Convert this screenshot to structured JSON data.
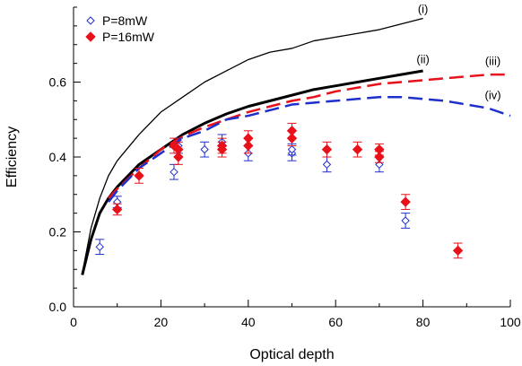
{
  "chart_data": {
    "type": "scatter",
    "title": "",
    "xlabel": "Optical depth",
    "ylabel": "Efficiency",
    "xlim": [
      0,
      100
    ],
    "ylim": [
      0,
      0.8
    ],
    "x_ticks": [
      0,
      20,
      40,
      60,
      80,
      100
    ],
    "y_ticks": [
      0.0,
      0.2,
      0.4,
      0.6
    ],
    "y_tick_labels": [
      "0.0",
      "0.2",
      "0.4",
      "0.6"
    ],
    "grid": false,
    "legend": {
      "position": "top-left",
      "entries": [
        {
          "label": "P=8mW",
          "marker": "open-diamond",
          "color": "#1f2fcc"
        },
        {
          "label": "P=16mW",
          "marker": "filled-diamond",
          "color": "#e8111a"
        }
      ]
    },
    "series": [
      {
        "name": "P=8mW",
        "kind": "points",
        "marker": "open-diamond",
        "color": "#1f2fcc",
        "points": [
          {
            "x": 6,
            "y": 0.16,
            "err": 0.02
          },
          {
            "x": 10,
            "y": 0.28,
            "err": 0.015
          },
          {
            "x": 23,
            "y": 0.36,
            "err": 0.02
          },
          {
            "x": 24,
            "y": 0.43,
            "err": 0.02
          },
          {
            "x": 30,
            "y": 0.42,
            "err": 0.02
          },
          {
            "x": 34,
            "y": 0.44,
            "err": 0.02
          },
          {
            "x": 40,
            "y": 0.41,
            "err": 0.02
          },
          {
            "x": 50,
            "y": 0.41,
            "err": 0.02
          },
          {
            "x": 50,
            "y": 0.42,
            "err": 0.015
          },
          {
            "x": 58,
            "y": 0.38,
            "err": 0.02
          },
          {
            "x": 70,
            "y": 0.38,
            "err": 0.02
          },
          {
            "x": 76,
            "y": 0.23,
            "err": 0.02
          }
        ]
      },
      {
        "name": "P=16mW",
        "kind": "points",
        "marker": "filled-diamond",
        "color": "#e8111a",
        "points": [
          {
            "x": 10,
            "y": 0.26,
            "err": 0.015
          },
          {
            "x": 15,
            "y": 0.35,
            "err": 0.02
          },
          {
            "x": 23,
            "y": 0.43,
            "err": 0.02
          },
          {
            "x": 24,
            "y": 0.42,
            "err": 0.02
          },
          {
            "x": 24,
            "y": 0.4,
            "err": 0.02
          },
          {
            "x": 34,
            "y": 0.43,
            "err": 0.02
          },
          {
            "x": 34,
            "y": 0.42,
            "err": 0.02
          },
          {
            "x": 40,
            "y": 0.45,
            "err": 0.02
          },
          {
            "x": 40,
            "y": 0.43,
            "err": 0.02
          },
          {
            "x": 50,
            "y": 0.47,
            "err": 0.02
          },
          {
            "x": 50,
            "y": 0.45,
            "err": 0.02
          },
          {
            "x": 58,
            "y": 0.42,
            "err": 0.02
          },
          {
            "x": 65,
            "y": 0.42,
            "err": 0.02
          },
          {
            "x": 70,
            "y": 0.42,
            "err": 0.015
          },
          {
            "x": 70,
            "y": 0.4,
            "err": 0.015
          },
          {
            "x": 76,
            "y": 0.28,
            "err": 0.02
          },
          {
            "x": 88,
            "y": 0.15,
            "err": 0.02
          }
        ]
      },
      {
        "name": "(i)",
        "kind": "line",
        "style": "solid-thin",
        "color": "#000000",
        "points": [
          [
            2,
            0.09
          ],
          [
            4,
            0.21
          ],
          [
            6,
            0.29
          ],
          [
            8,
            0.35
          ],
          [
            10,
            0.39
          ],
          [
            15,
            0.46
          ],
          [
            20,
            0.52
          ],
          [
            25,
            0.56
          ],
          [
            30,
            0.6
          ],
          [
            35,
            0.63
          ],
          [
            40,
            0.66
          ],
          [
            45,
            0.68
          ],
          [
            50,
            0.69
          ],
          [
            55,
            0.71
          ],
          [
            60,
            0.72
          ],
          [
            65,
            0.73
          ],
          [
            70,
            0.74
          ],
          [
            75,
            0.755
          ],
          [
            80,
            0.77
          ]
        ]
      },
      {
        "name": "(ii)",
        "kind": "line",
        "style": "solid-thick",
        "color": "#000000",
        "points": [
          [
            2,
            0.085
          ],
          [
            4,
            0.18
          ],
          [
            6,
            0.25
          ],
          [
            8,
            0.29
          ],
          [
            10,
            0.32
          ],
          [
            15,
            0.38
          ],
          [
            20,
            0.42
          ],
          [
            25,
            0.46
          ],
          [
            30,
            0.49
          ],
          [
            35,
            0.515
          ],
          [
            40,
            0.535
          ],
          [
            45,
            0.55
          ],
          [
            50,
            0.565
          ],
          [
            55,
            0.58
          ],
          [
            60,
            0.59
          ],
          [
            65,
            0.6
          ],
          [
            70,
            0.61
          ],
          [
            75,
            0.62
          ],
          [
            80,
            0.63
          ]
        ]
      },
      {
        "name": "(iii)",
        "kind": "line",
        "style": "dashed",
        "color": "#e8111a",
        "points": [
          [
            8,
            0.29
          ],
          [
            10,
            0.315
          ],
          [
            15,
            0.37
          ],
          [
            20,
            0.42
          ],
          [
            25,
            0.455
          ],
          [
            30,
            0.48
          ],
          [
            35,
            0.5
          ],
          [
            40,
            0.52
          ],
          [
            45,
            0.535
          ],
          [
            50,
            0.55
          ],
          [
            55,
            0.56
          ],
          [
            60,
            0.575
          ],
          [
            65,
            0.585
          ],
          [
            70,
            0.595
          ],
          [
            75,
            0.6
          ],
          [
            80,
            0.605
          ],
          [
            85,
            0.61
          ],
          [
            90,
            0.615
          ],
          [
            95,
            0.62
          ],
          [
            100,
            0.62
          ]
        ]
      },
      {
        "name": "(iv)",
        "kind": "line",
        "style": "dashed",
        "color": "#1f2fcc",
        "points": [
          [
            8,
            0.28
          ],
          [
            10,
            0.31
          ],
          [
            15,
            0.37
          ],
          [
            20,
            0.41
          ],
          [
            25,
            0.45
          ],
          [
            30,
            0.47
          ],
          [
            35,
            0.5
          ],
          [
            40,
            0.51
          ],
          [
            45,
            0.525
          ],
          [
            50,
            0.54
          ],
          [
            55,
            0.545
          ],
          [
            60,
            0.55
          ],
          [
            65,
            0.555
          ],
          [
            70,
            0.56
          ],
          [
            75,
            0.56
          ],
          [
            80,
            0.555
          ],
          [
            85,
            0.55
          ],
          [
            90,
            0.54
          ],
          [
            95,
            0.53
          ],
          [
            100,
            0.51
          ]
        ]
      }
    ],
    "curve_labels": [
      {
        "text": "(i)",
        "x": 80,
        "y": 0.785
      },
      {
        "text": "(ii)",
        "x": 80,
        "y": 0.65
      },
      {
        "text": "(iii)",
        "x": 96,
        "y": 0.645
      },
      {
        "text": "(iv)",
        "x": 96,
        "y": 0.555
      }
    ]
  }
}
